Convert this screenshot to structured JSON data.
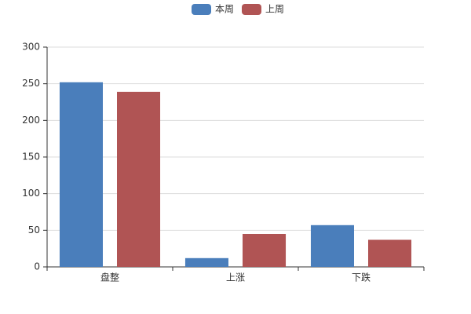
{
  "chart_data": {
    "type": "bar",
    "categories": [
      "盘整",
      "上涨",
      "下跌"
    ],
    "series": [
      {
        "name": "本周",
        "color": "#4a7ebb",
        "values": [
          252,
          12,
          57
        ]
      },
      {
        "name": "上周",
        "color": "#b05454",
        "values": [
          239,
          45,
          37
        ]
      }
    ],
    "ylim": [
      0,
      300
    ],
    "yticks": [
      0,
      50,
      100,
      150,
      200,
      250,
      300
    ],
    "grid": true,
    "legend": "top"
  }
}
